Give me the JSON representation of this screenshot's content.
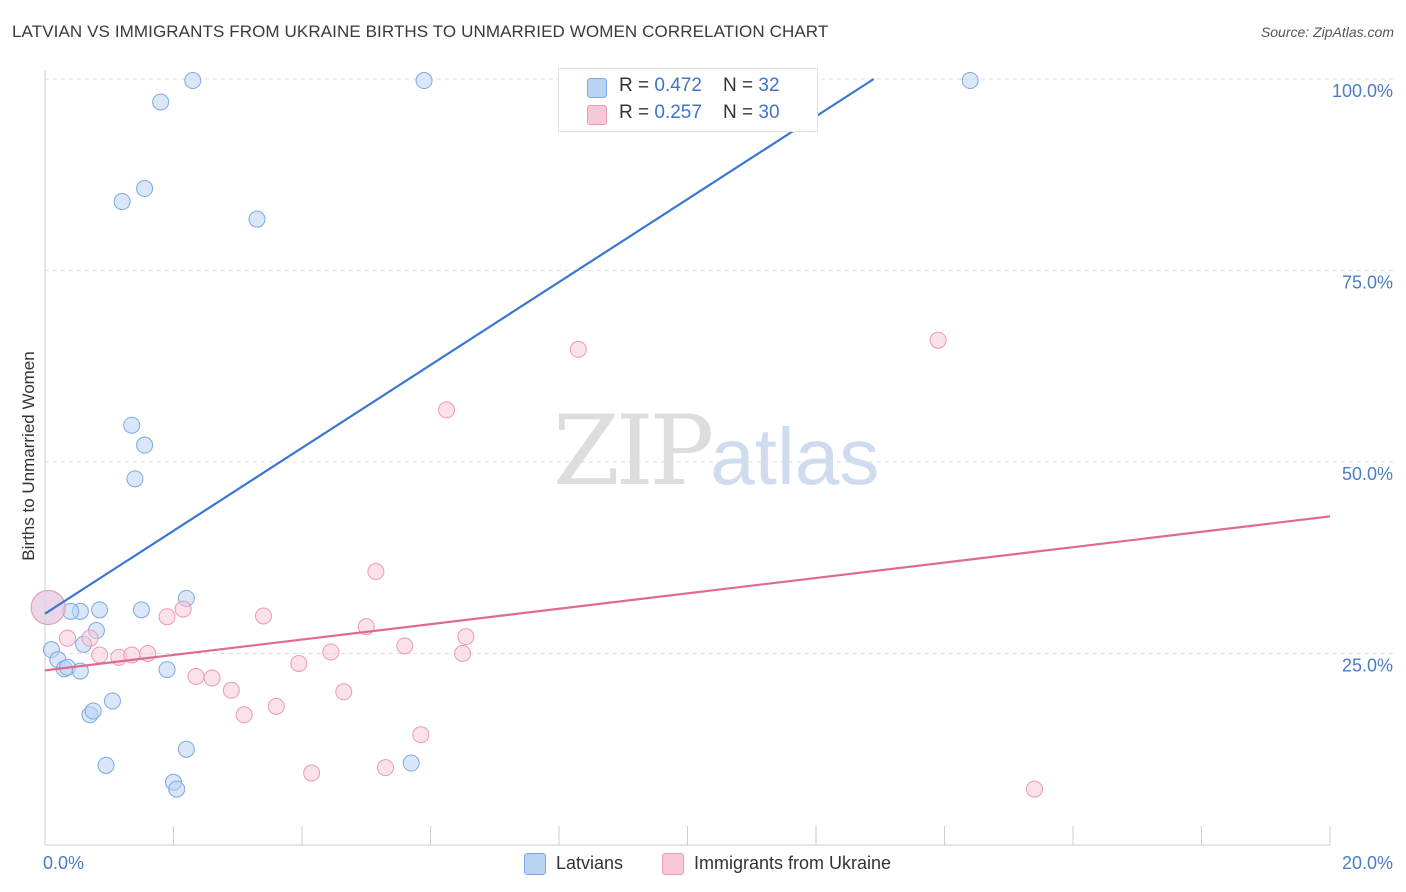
{
  "title": "LATVIAN VS IMMIGRANTS FROM UKRAINE BIRTHS TO UNMARRIED WOMEN CORRELATION CHART",
  "source": "Source: ZipAtlas.com",
  "watermark": {
    "zip": "ZIP",
    "atlas": "atlas"
  },
  "colors": {
    "blue_fill": "#b9d3f4",
    "blue_stroke": "#7ea8e0",
    "blue_line": "#3a78d0",
    "pink_fill": "#f8c8d8",
    "pink_stroke": "#ec9ab6",
    "pink_line": "#e06a94",
    "grid": "#dddddd",
    "tick_text": "#4a7cc4"
  },
  "legend_top": {
    "rows": [
      {
        "r_label": "R = ",
        "r_value": "0.472",
        "n_label": "N = ",
        "n_value": "32"
      },
      {
        "r_label": "R = ",
        "r_value": "0.257",
        "n_label": "N = ",
        "n_value": "30"
      }
    ]
  },
  "legend_bottom": [
    "Latvians",
    "Immigrants from Ukraine"
  ],
  "chart_data": {
    "type": "scatter",
    "title": "LATVIAN VS IMMIGRANTS FROM UKRAINE BIRTHS TO UNMARRIED WOMEN CORRELATION CHART",
    "xlabel": "",
    "ylabel": "Births to Unmarried Women",
    "xlim": [
      0,
      20
    ],
    "ylim": [
      0,
      105
    ],
    "x_tick_labels": [
      "0.0%",
      "20.0%"
    ],
    "y_ticks": [
      25,
      50,
      75,
      100
    ],
    "y_tick_labels": [
      "25.0%",
      "50.0%",
      "75.0%",
      "100.0%"
    ],
    "grid": true,
    "series": [
      {
        "name": "Latvians",
        "R": 0.472,
        "N": 32,
        "trend": {
          "x0": 0,
          "y0": 30.2,
          "x1": 12.9,
          "y1": 100
        },
        "points": [
          [
            0.1,
            25.5
          ],
          [
            0.2,
            24.2
          ],
          [
            0.3,
            23.0
          ],
          [
            0.35,
            23.2
          ],
          [
            0.55,
            30.5
          ],
          [
            0.85,
            30.7
          ],
          [
            0.55,
            22.7
          ],
          [
            0.6,
            26.2
          ],
          [
            0.8,
            28.0
          ],
          [
            1.05,
            18.8
          ],
          [
            0.7,
            17.0
          ],
          [
            0.75,
            17.5
          ],
          [
            0.95,
            10.4
          ],
          [
            1.2,
            84.0
          ],
          [
            1.4,
            47.8
          ],
          [
            1.35,
            54.8
          ],
          [
            1.55,
            52.2
          ],
          [
            1.5,
            30.7
          ],
          [
            1.9,
            22.9
          ],
          [
            2.2,
            32.2
          ],
          [
            2.2,
            12.5
          ],
          [
            2.0,
            8.2
          ],
          [
            2.05,
            7.3
          ],
          [
            1.55,
            85.7
          ],
          [
            1.8,
            97.0
          ],
          [
            2.3,
            99.8
          ],
          [
            3.3,
            81.7
          ],
          [
            5.9,
            99.8
          ],
          [
            14.4,
            99.8
          ],
          [
            5.7,
            10.7
          ],
          [
            0.05,
            31.0
          ],
          [
            0.4,
            30.5
          ]
        ]
      },
      {
        "name": "Immigrants from Ukraine",
        "R": 0.257,
        "N": 30,
        "trend": {
          "x0": 0,
          "y0": 22.8,
          "x1": 20,
          "y1": 42.9
        },
        "points": [
          [
            0.05,
            31.0
          ],
          [
            0.35,
            27.0
          ],
          [
            0.7,
            27.0
          ],
          [
            0.85,
            24.8
          ],
          [
            1.15,
            24.5
          ],
          [
            1.35,
            24.8
          ],
          [
            1.6,
            25.0
          ],
          [
            1.9,
            29.8
          ],
          [
            2.15,
            30.8
          ],
          [
            2.35,
            22.0
          ],
          [
            2.6,
            21.8
          ],
          [
            2.9,
            20.2
          ],
          [
            3.1,
            17.0
          ],
          [
            3.4,
            29.9
          ],
          [
            3.6,
            18.1
          ],
          [
            3.95,
            23.7
          ],
          [
            4.15,
            9.4
          ],
          [
            4.45,
            25.2
          ],
          [
            4.65,
            20.0
          ],
          [
            5.0,
            28.5
          ],
          [
            5.15,
            35.7
          ],
          [
            5.3,
            10.1
          ],
          [
            5.6,
            26.0
          ],
          [
            5.85,
            14.4
          ],
          [
            6.25,
            56.8
          ],
          [
            6.5,
            25.0
          ],
          [
            6.55,
            27.2
          ],
          [
            8.3,
            64.7
          ],
          [
            13.9,
            65.9
          ],
          [
            15.4,
            7.3
          ]
        ]
      }
    ]
  }
}
